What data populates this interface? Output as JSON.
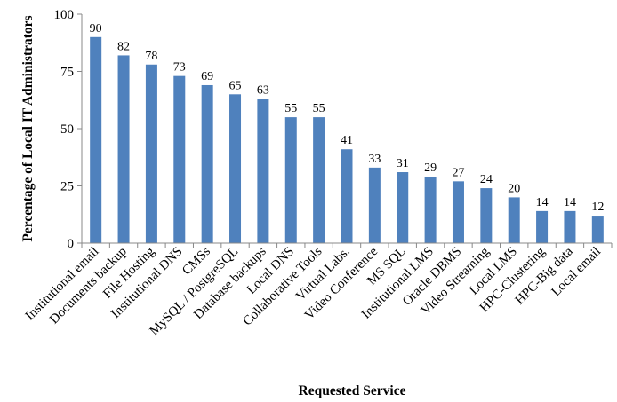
{
  "chart_data": {
    "type": "bar",
    "xlabel": "Requested Service",
    "ylabel": "Percentage  of  Local IT Administrators",
    "ylim": [
      0,
      100
    ],
    "yticks": [
      0,
      25,
      50,
      75,
      100
    ],
    "grid": false,
    "legend": "none",
    "bar_color": "#4F81BD",
    "categories": [
      "Institutional email",
      "Documents backup",
      "File Hosting",
      "Institutional DNS",
      "CMSs",
      "MySQL / PostgreSQL",
      "Database backups",
      "Local DNS",
      "Collaborative Tools",
      "Virtual Labs.",
      "Video Conference",
      "MS SQL",
      "Institutional LMS",
      "Oracle DBMS",
      "Video Streaming",
      "Local LMS",
      "HPC-Clustering",
      "HPC-Big data",
      "Local email"
    ],
    "values": [
      90,
      82,
      78,
      73,
      69,
      65,
      63,
      55,
      55,
      41,
      33,
      31,
      29,
      27,
      24,
      20,
      14,
      14,
      12
    ]
  }
}
